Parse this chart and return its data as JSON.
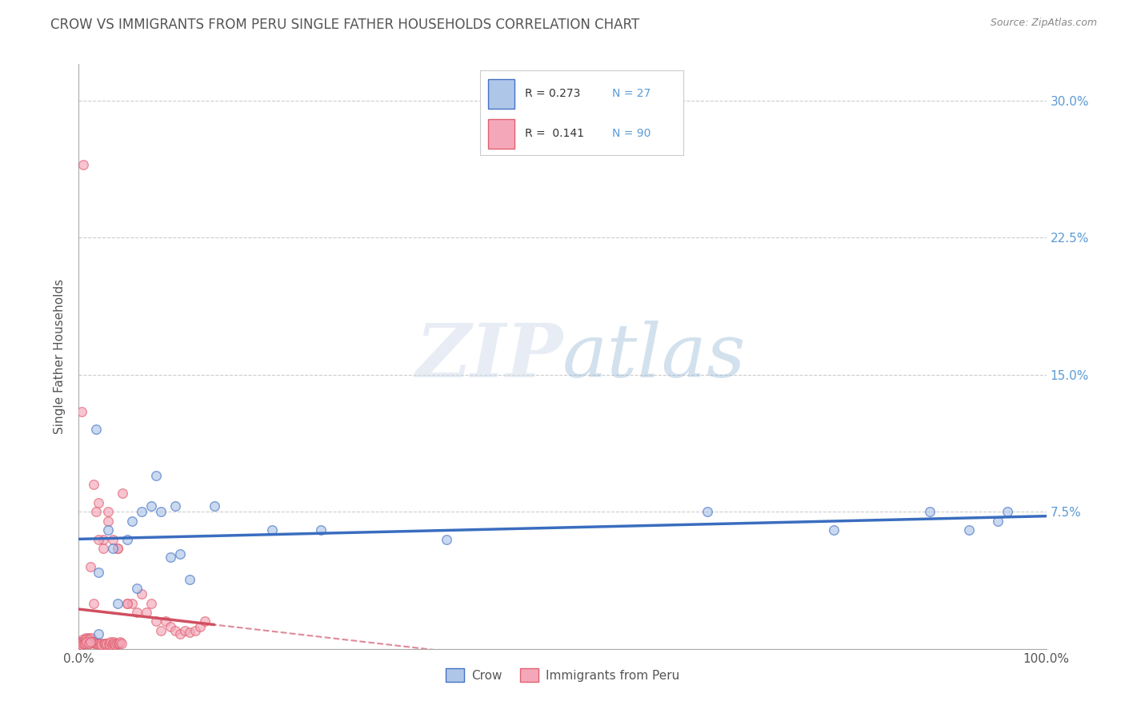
{
  "title": "CROW VS IMMIGRANTS FROM PERU SINGLE FATHER HOUSEHOLDS CORRELATION CHART",
  "source": "Source: ZipAtlas.com",
  "ylabel": "Single Father Households",
  "xlim": [
    0,
    1.0
  ],
  "ylim": [
    0,
    0.32
  ],
  "xtick_positions": [
    0.0,
    0.2,
    0.4,
    0.6,
    0.8,
    1.0
  ],
  "xticklabels": [
    "0.0%",
    "",
    "",
    "",
    "",
    "100.0%"
  ],
  "ytick_positions": [
    0.0,
    0.075,
    0.15,
    0.225,
    0.3
  ],
  "yticklabels_right": [
    "",
    "7.5%",
    "15.0%",
    "22.5%",
    "30.0%"
  ],
  "crow_fill_color": "#aec6e8",
  "crow_edge_color": "#4472c4",
  "peru_fill_color": "#f4a7b9",
  "peru_edge_color": "#e06070",
  "crow_line_color": "#3a6dbf",
  "peru_solid_color": "#d05060",
  "peru_dash_color": "#e08898",
  "crow_R": 0.273,
  "crow_N": 27,
  "peru_R": 0.141,
  "peru_N": 90,
  "crow_scatter_x": [
    0.018,
    0.03,
    0.035,
    0.05,
    0.055,
    0.065,
    0.075,
    0.085,
    0.095,
    0.105,
    0.115,
    0.02,
    0.04,
    0.06,
    0.02,
    0.2,
    0.38,
    0.65,
    0.78,
    0.88,
    0.92,
    0.95,
    0.96,
    0.14,
    0.08,
    0.1,
    0.25
  ],
  "crow_scatter_y": [
    0.12,
    0.065,
    0.055,
    0.06,
    0.07,
    0.075,
    0.078,
    0.075,
    0.05,
    0.052,
    0.038,
    0.042,
    0.025,
    0.033,
    0.008,
    0.065,
    0.06,
    0.075,
    0.065,
    0.075,
    0.065,
    0.07,
    0.075,
    0.078,
    0.095,
    0.078,
    0.065
  ],
  "peru_scatter_x": [
    0.005,
    0.006,
    0.007,
    0.008,
    0.009,
    0.01,
    0.011,
    0.012,
    0.013,
    0.014,
    0.015,
    0.016,
    0.017,
    0.018,
    0.019,
    0.02,
    0.021,
    0.022,
    0.023,
    0.024,
    0.025,
    0.026,
    0.027,
    0.028,
    0.029,
    0.03,
    0.031,
    0.032,
    0.033,
    0.034,
    0.035,
    0.036,
    0.037,
    0.038,
    0.039,
    0.04,
    0.041,
    0.042,
    0.043,
    0.044,
    0.045,
    0.05,
    0.055,
    0.06,
    0.065,
    0.07,
    0.075,
    0.08,
    0.085,
    0.09,
    0.095,
    0.1,
    0.105,
    0.11,
    0.115,
    0.12,
    0.125,
    0.13,
    0.002,
    0.003,
    0.004,
    0.003,
    0.004,
    0.003,
    0.004,
    0.003,
    0.004,
    0.003,
    0.004,
    0.003,
    0.005,
    0.006,
    0.007,
    0.008,
    0.009,
    0.01,
    0.011,
    0.012,
    0.006,
    0.008,
    0.01,
    0.012,
    0.015,
    0.018,
    0.02,
    0.025,
    0.03,
    0.035,
    0.04,
    0.05
  ],
  "peru_scatter_y": [
    0.265,
    0.005,
    0.006,
    0.004,
    0.005,
    0.006,
    0.004,
    0.045,
    0.006,
    0.004,
    0.025,
    0.003,
    0.004,
    0.003,
    0.003,
    0.08,
    0.003,
    0.002,
    0.003,
    0.002,
    0.06,
    0.003,
    0.003,
    0.002,
    0.003,
    0.075,
    0.003,
    0.002,
    0.004,
    0.002,
    0.003,
    0.004,
    0.003,
    0.002,
    0.003,
    0.055,
    0.003,
    0.003,
    0.004,
    0.003,
    0.085,
    0.025,
    0.025,
    0.02,
    0.03,
    0.02,
    0.025,
    0.015,
    0.01,
    0.015,
    0.012,
    0.01,
    0.008,
    0.01,
    0.009,
    0.01,
    0.012,
    0.015,
    0.004,
    0.003,
    0.003,
    0.13,
    0.005,
    0.004,
    0.003,
    0.003,
    0.004,
    0.003,
    0.004,
    0.002,
    0.003,
    0.004,
    0.005,
    0.003,
    0.004,
    0.005,
    0.003,
    0.004,
    0.003,
    0.004,
    0.003,
    0.004,
    0.09,
    0.075,
    0.06,
    0.055,
    0.07,
    0.06,
    0.055,
    0.025
  ],
  "watermark_zip": "ZIP",
  "watermark_atlas": "atlas",
  "background_color": "#ffffff",
  "grid_color": "#cccccc",
  "marker_size": 70,
  "marker_alpha": 0.65,
  "title_color": "#555555",
  "source_color": "#888888",
  "right_yaxis_color": "#5b9bd5",
  "legend_text_color": "#333333",
  "legend_N_color": "#5b9bd5"
}
